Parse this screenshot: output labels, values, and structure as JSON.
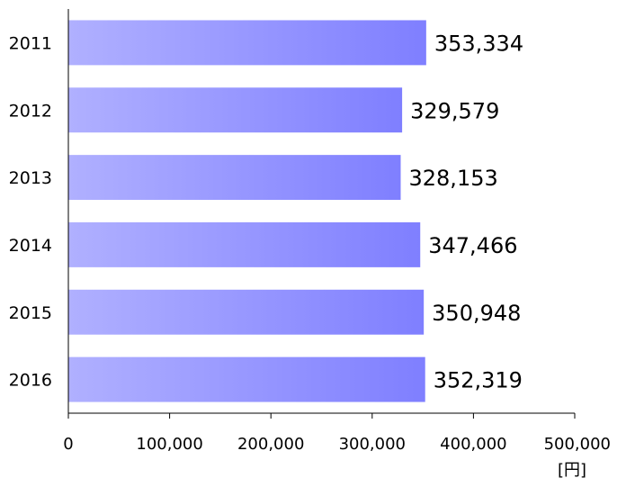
{
  "chart_data": {
    "type": "bar",
    "orientation": "horizontal",
    "categories": [
      "2011",
      "2012",
      "2013",
      "2014",
      "2015",
      "2016"
    ],
    "values": [
      353334,
      329579,
      328153,
      347466,
      350948,
      352319
    ],
    "value_labels": [
      "353,334",
      "329,579",
      "328,153",
      "347,466",
      "350,948",
      "352,319"
    ],
    "x_ticks": [
      0,
      100000,
      200000,
      300000,
      400000,
      500000
    ],
    "x_tick_labels": [
      "0",
      "100,000",
      "200,000",
      "300,000",
      "400,000",
      "500,000"
    ],
    "xlim": [
      0,
      500000
    ],
    "unit_label": "[円]",
    "grid": false,
    "legend": "none",
    "bar_gradient": [
      "#b0b0ff",
      "#7f7fff"
    ]
  }
}
